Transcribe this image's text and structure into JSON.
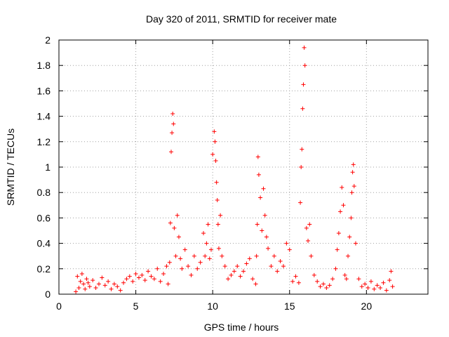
{
  "chart_data": {
    "type": "scatter",
    "title": "Day 320 of 2011, SRMTID for receiver mate",
    "xlabel": "GPS time / hours",
    "ylabel": "SRMTID / TECUs",
    "xlim": [
      0,
      24
    ],
    "ylim": [
      0,
      2
    ],
    "xticks": [
      0,
      5,
      10,
      15,
      20
    ],
    "yticks": [
      0,
      0.2,
      0.4,
      0.6,
      0.8,
      1,
      1.2,
      1.4,
      1.6,
      1.8,
      2
    ],
    "xtick_labels": [
      "0",
      "5",
      "10",
      "15",
      "20"
    ],
    "ytick_labels": [
      "0",
      "0.2",
      "0.4",
      "0.6",
      "0.8",
      "1",
      "1.2",
      "1.4",
      "1.6",
      "1.8",
      "2"
    ],
    "grid": true,
    "marker": "+",
    "color": "#ff0000",
    "series": [
      {
        "name": "SRMTID",
        "x": [
          1.1,
          1.2,
          1.3,
          1.4,
          1.5,
          1.6,
          1.7,
          1.8,
          1.9,
          2.0,
          2.2,
          2.4,
          2.6,
          2.8,
          3.0,
          3.2,
          3.4,
          3.6,
          3.8,
          4.0,
          4.2,
          4.4,
          4.6,
          4.8,
          5.0,
          5.2,
          5.4,
          5.6,
          5.8,
          6.0,
          6.2,
          6.4,
          6.6,
          6.8,
          7.0,
          7.1,
          7.2,
          7.25,
          7.3,
          7.35,
          7.4,
          7.45,
          7.5,
          7.6,
          7.7,
          7.8,
          7.9,
          8.0,
          8.2,
          8.4,
          8.6,
          8.8,
          9.0,
          9.2,
          9.4,
          9.5,
          9.6,
          9.7,
          9.8,
          9.9,
          10.0,
          10.1,
          10.15,
          10.2,
          10.25,
          10.3,
          10.35,
          10.4,
          10.5,
          10.6,
          10.8,
          11.0,
          11.2,
          11.4,
          11.6,
          11.8,
          12.0,
          12.2,
          12.4,
          12.6,
          12.8,
          12.85,
          12.9,
          12.95,
          13.0,
          13.1,
          13.2,
          13.3,
          13.4,
          13.5,
          13.6,
          13.8,
          14.0,
          14.2,
          14.4,
          14.6,
          14.8,
          15.0,
          15.2,
          15.4,
          15.6,
          15.7,
          15.75,
          15.8,
          15.85,
          15.9,
          15.95,
          16.0,
          16.1,
          16.2,
          16.3,
          16.4,
          16.6,
          16.8,
          17.0,
          17.2,
          17.4,
          17.6,
          17.8,
          18.0,
          18.1,
          18.2,
          18.3,
          18.4,
          18.5,
          18.6,
          18.7,
          18.8,
          18.9,
          19.0,
          19.05,
          19.1,
          19.15,
          19.2,
          19.3,
          19.5,
          19.7,
          19.9,
          20.1,
          20.3,
          20.5,
          20.7,
          20.9,
          21.1,
          21.3,
          21.5,
          21.6,
          21.7
        ],
        "y": [
          0.02,
          0.14,
          0.05,
          0.1,
          0.16,
          0.08,
          0.04,
          0.12,
          0.09,
          0.06,
          0.11,
          0.05,
          0.08,
          0.13,
          0.07,
          0.1,
          0.04,
          0.08,
          0.06,
          0.03,
          0.09,
          0.12,
          0.14,
          0.1,
          0.16,
          0.13,
          0.15,
          0.11,
          0.18,
          0.14,
          0.12,
          0.2,
          0.1,
          0.16,
          0.22,
          0.08,
          0.25,
          0.56,
          1.12,
          1.27,
          1.42,
          1.34,
          0.52,
          0.3,
          0.62,
          0.45,
          0.28,
          0.2,
          0.35,
          0.22,
          0.15,
          0.3,
          0.2,
          0.25,
          0.48,
          0.3,
          0.4,
          0.55,
          0.28,
          0.35,
          1.1,
          1.28,
          1.2,
          1.05,
          0.88,
          0.74,
          0.55,
          0.36,
          0.62,
          0.3,
          0.22,
          0.12,
          0.15,
          0.18,
          0.22,
          0.14,
          0.18,
          0.24,
          0.28,
          0.12,
          0.08,
          0.3,
          0.55,
          1.08,
          0.94,
          0.76,
          0.5,
          0.83,
          0.62,
          0.45,
          0.36,
          0.22,
          0.3,
          0.18,
          0.26,
          0.22,
          0.4,
          0.35,
          0.1,
          0.14,
          0.09,
          0.72,
          1.0,
          1.14,
          1.46,
          1.65,
          1.94,
          1.8,
          0.52,
          0.42,
          0.55,
          0.3,
          0.15,
          0.1,
          0.06,
          0.08,
          0.05,
          0.07,
          0.12,
          0.2,
          0.35,
          0.48,
          0.65,
          0.84,
          0.7,
          0.15,
          0.12,
          0.3,
          0.45,
          0.6,
          0.8,
          0.96,
          1.02,
          0.85,
          0.4,
          0.12,
          0.06,
          0.08,
          0.05,
          0.1,
          0.04,
          0.07,
          0.05,
          0.09,
          0.03,
          0.11,
          0.18,
          0.06
        ]
      }
    ]
  }
}
